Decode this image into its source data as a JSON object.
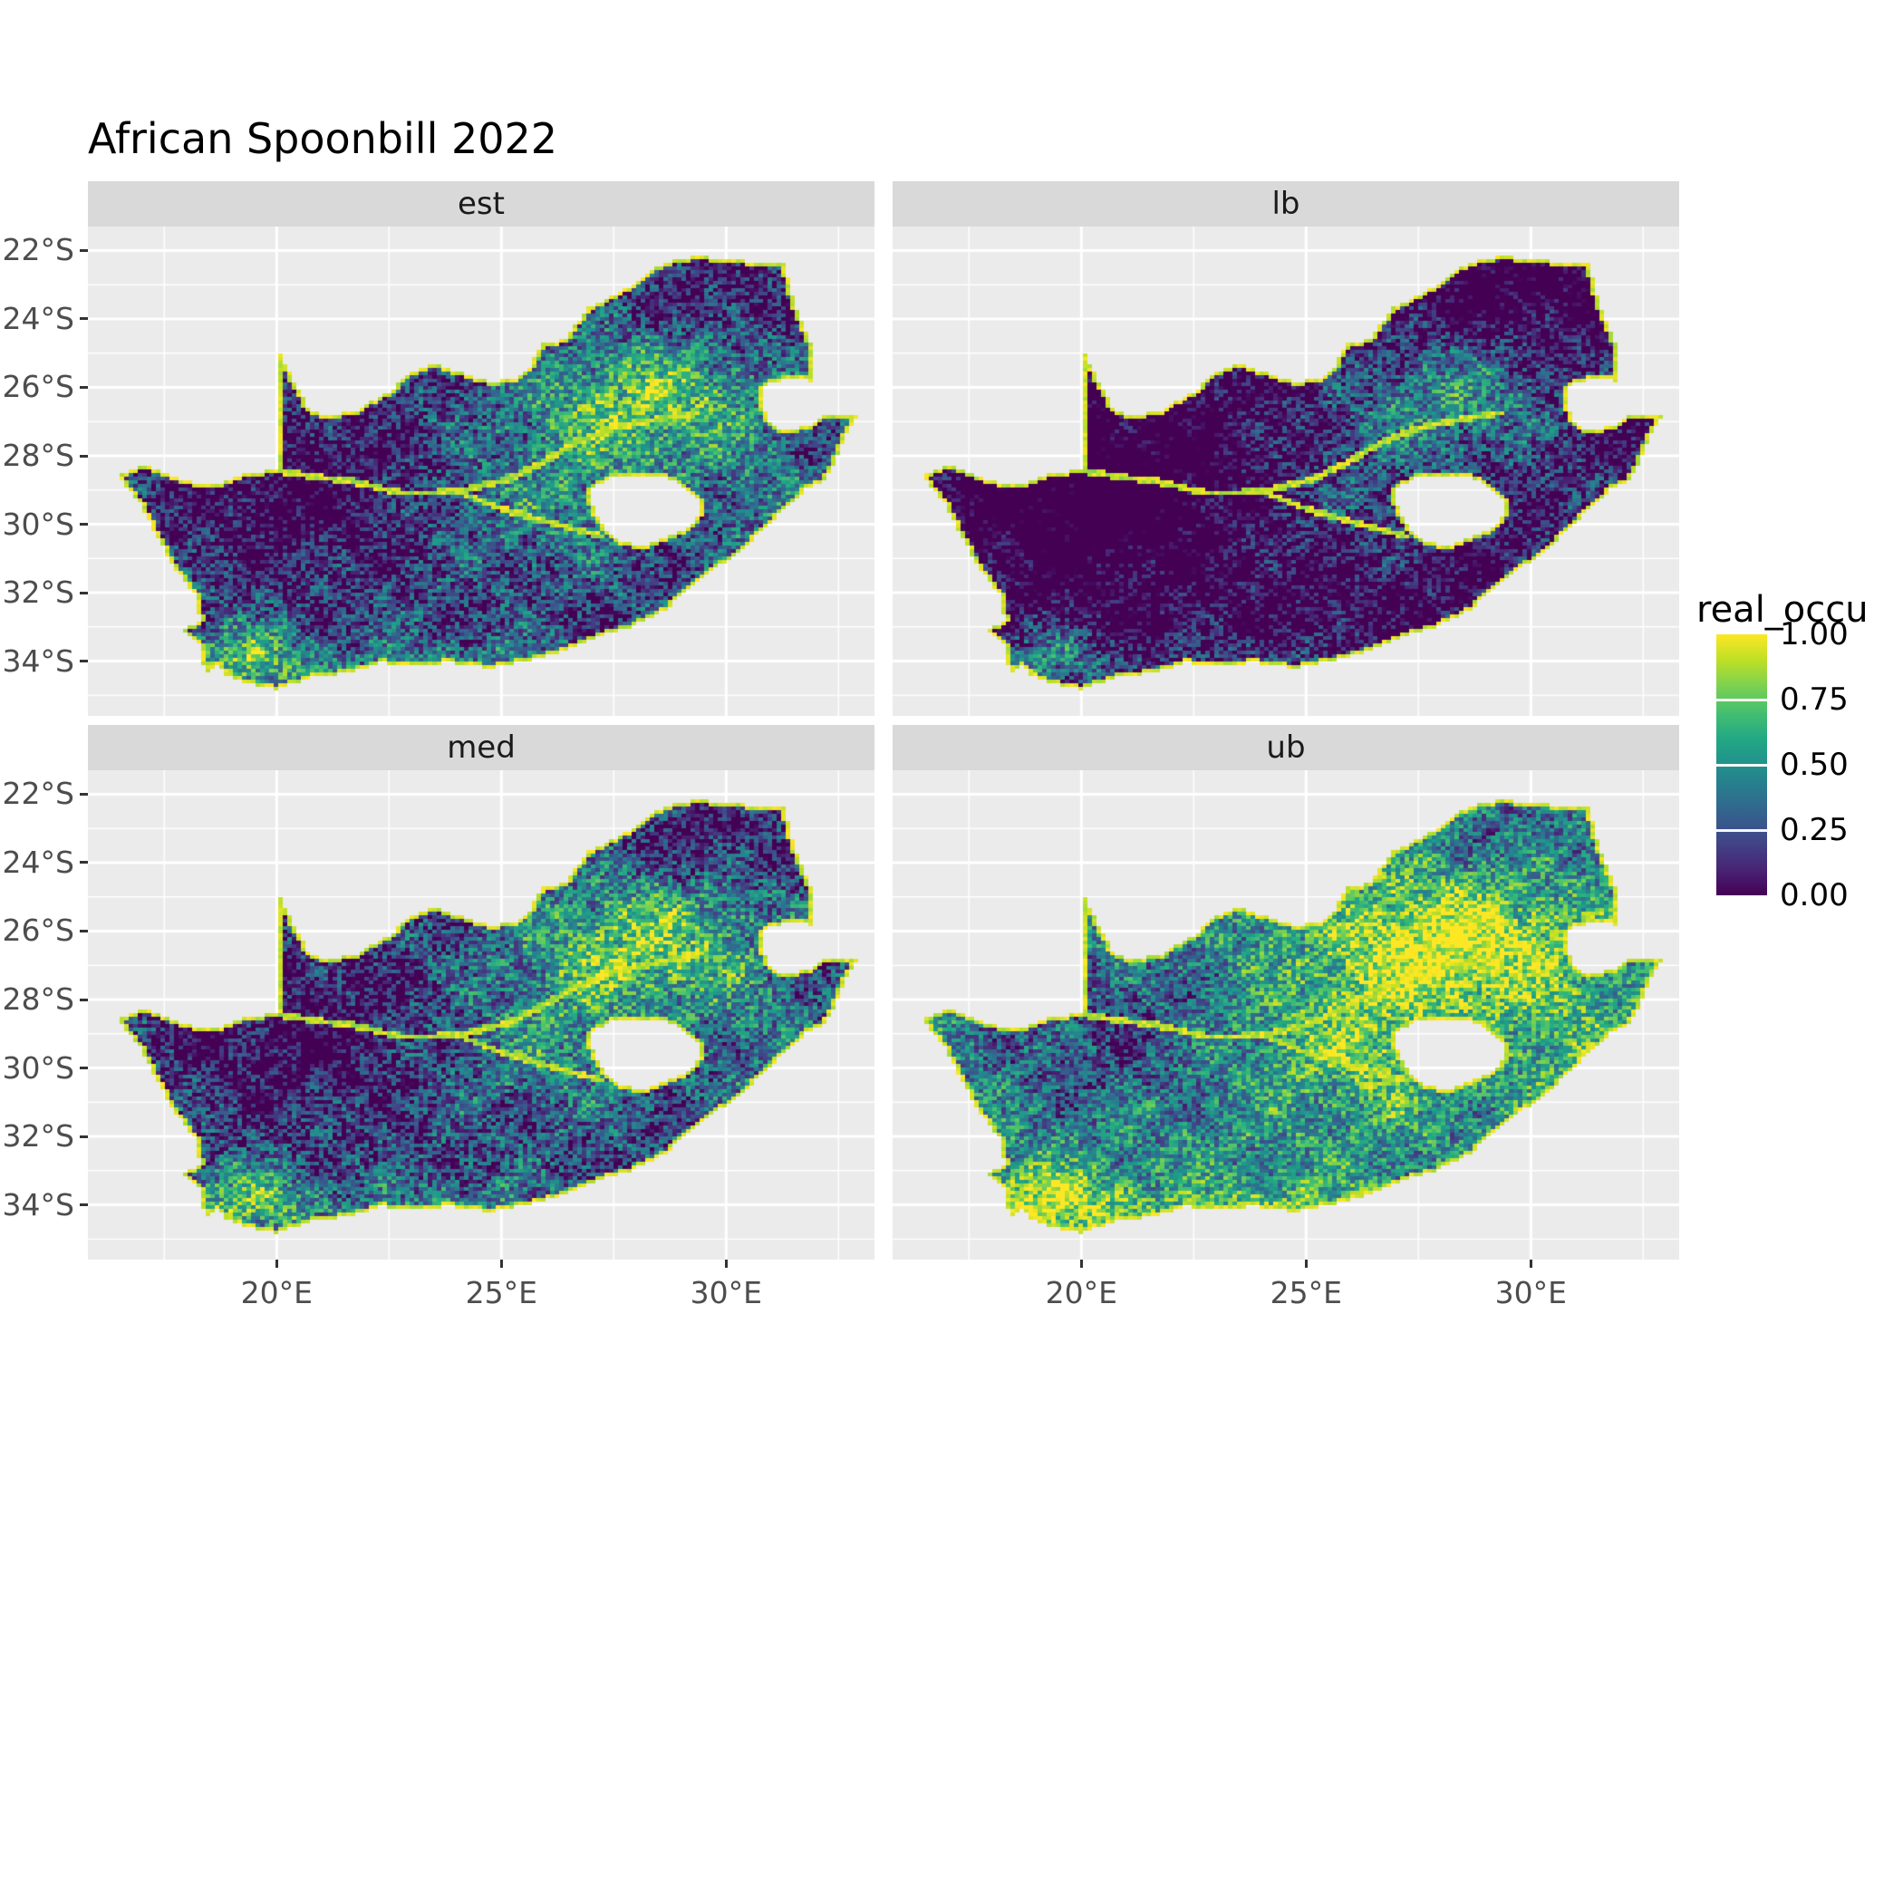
{
  "title": "African Spoonbill 2022",
  "facets": [
    "est",
    "lb",
    "med",
    "ub"
  ],
  "axes": {
    "x": {
      "labels": [
        "20°E",
        "25°E",
        "30°E"
      ]
    },
    "y": {
      "labels": [
        "22°S",
        "24°S",
        "26°S",
        "28°S",
        "30°S",
        "32°S",
        "34°S"
      ]
    }
  },
  "legend": {
    "title": "real_occu",
    "labels": [
      "1.00",
      "0.75",
      "0.50",
      "0.25",
      "0.00"
    ],
    "values": [
      1.0,
      0.75,
      0.5,
      0.25,
      0.0
    ]
  },
  "colors": {
    "panel_bg": "#EBEBEB",
    "strip_bg": "#D9D9D9",
    "strip_text": "#1A1A1A",
    "grid": "#FFFFFF",
    "axis_text": "#4D4D4D",
    "tick": "#333333",
    "title_text": "#000000",
    "page_bg": "#FFFFFF"
  },
  "chart_data": {
    "type": "heatmap",
    "subtype": "faceted raster occupancy map",
    "title": "African Spoonbill 2022",
    "region": "South Africa",
    "facets": [
      "est",
      "lb",
      "med",
      "ub"
    ],
    "value_variable": "real_occu",
    "value_range": [
      0.0,
      1.0
    ],
    "legend_breaks": [
      0.0,
      0.25,
      0.5,
      0.75,
      1.0
    ],
    "legend_break_labels": [
      "0.00",
      "0.25",
      "0.50",
      "0.75",
      "1.00"
    ],
    "legend_position": "right",
    "colormap": "viridis",
    "colormap_stops": [
      "#440154",
      "#482475",
      "#414487",
      "#355F8D",
      "#2A788E",
      "#21918C",
      "#22A884",
      "#44BF70",
      "#7AD151",
      "#BDDF26",
      "#FDE725"
    ],
    "x_axis": {
      "ticks": [
        20,
        25,
        30
      ],
      "tick_labels": [
        "20°E",
        "25°E",
        "30°E"
      ],
      "range": [
        15.8,
        33.3
      ],
      "unit": "degrees east"
    },
    "y_axis": {
      "ticks": [
        -22,
        -24,
        -26,
        -28,
        -30,
        -32,
        -34
      ],
      "tick_labels": [
        "22°S",
        "24°S",
        "26°S",
        "28°S",
        "30°S",
        "32°S",
        "34°S"
      ],
      "range": [
        -35.6,
        -21.3
      ],
      "unit": "degrees south"
    },
    "grid": true,
    "panel_layout": {
      "rows": 2,
      "cols": 2,
      "order": [
        "est",
        "lb",
        "med",
        "ub"
      ]
    },
    "notes": "Occupancy probability (0-1, viridis) rasterized over South Africa; lb facet is darkest (lower bound), ub facet is brightest (upper bound); Lesotho and Eswatini are excluded (no data)."
  }
}
